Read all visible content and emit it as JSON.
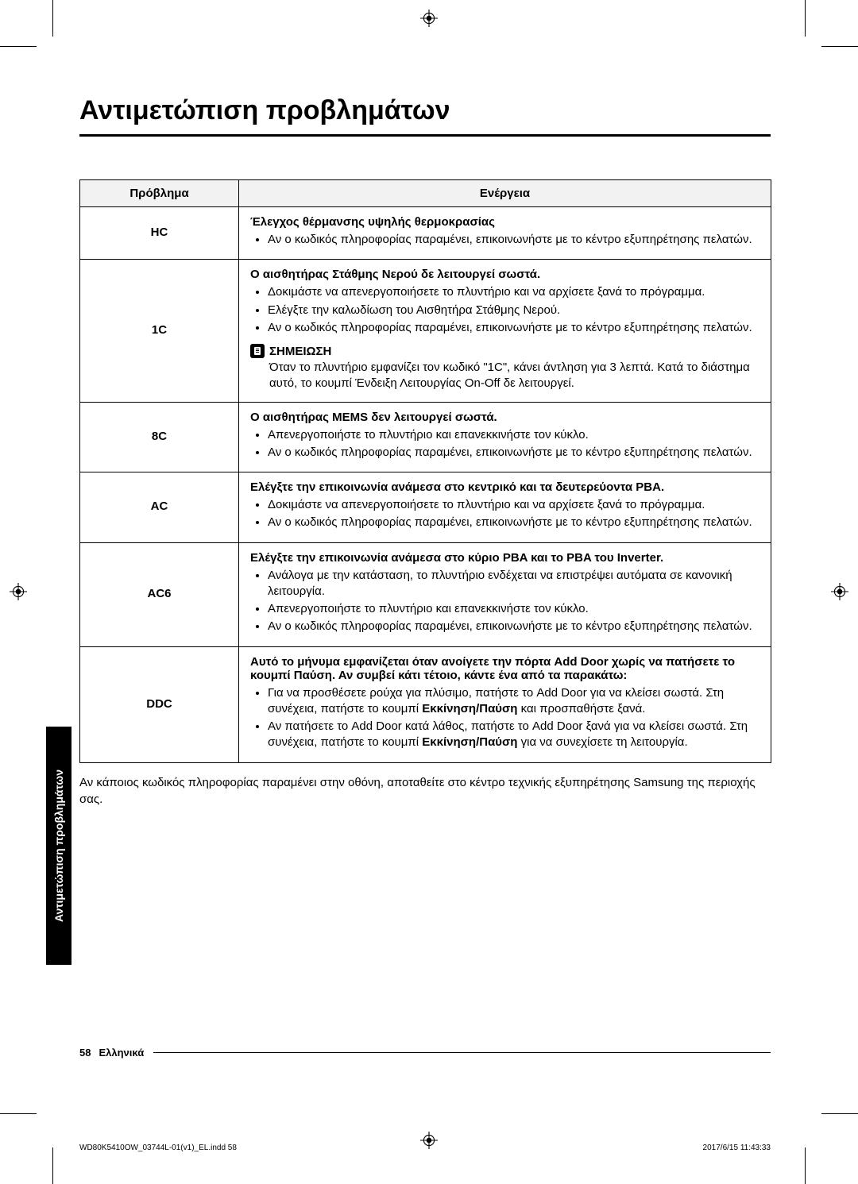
{
  "title": "Αντιμετώπιση προβλημάτων",
  "side_tab": "Αντιμετώπιση προβλημάτων",
  "table": {
    "headers": {
      "problem": "Πρόβλημα",
      "action": "Ενέργεια"
    },
    "rows": [
      {
        "code": "HC",
        "lead": "Έλεγχος θέρμανσης υψηλής θερμοκρασίας",
        "bullets": [
          "Αν ο κωδικός πληροφορίας παραμένει, επικοινωνήστε με το κέντρο εξυπηρέτησης πελατών."
        ]
      },
      {
        "code": "1C",
        "lead": "Ο αισθητήρας Στάθμης Νερού δε λειτουργεί σωστά.",
        "bullets": [
          "Δοκιμάστε να απενεργοποιήσετε το πλυντήριο και να αρχίσετε ξανά το πρόγραμμα.",
          "Ελέγξτε την καλωδίωση του Αισθητήρα Στάθμης Νερού.",
          "Αν ο κωδικός πληροφορίας παραμένει, επικοινωνήστε με το κέντρο εξυπηρέτησης πελατών."
        ],
        "note_label": "ΣΗΜΕΙΩΣΗ",
        "note_body": "Όταν το πλυντήριο εμφανίζει τον κωδικό \"1C\", κάνει άντληση για 3 λεπτά. Κατά το διάστημα αυτό, το κουμπί Ένδειξη Λειτουργίας On-Off δε λειτουργεί."
      },
      {
        "code": "8C",
        "lead": "Ο αισθητήρας MEMS δεν λειτουργεί σωστά.",
        "bullets": [
          "Απενεργοποιήστε το πλυντήριο και επανεκκινήστε τον κύκλο.",
          "Αν ο κωδικός πληροφορίας παραμένει, επικοινωνήστε με το κέντρο εξυπηρέτησης πελατών."
        ]
      },
      {
        "code": "AC",
        "lead": "Ελέγξτε την επικοινωνία ανάμεσα στο κεντρικό και τα δευτερεύοντα PBA.",
        "bullets": [
          "Δοκιμάστε να απενεργοποιήσετε το πλυντήριο και να αρχίσετε ξανά το πρόγραμμα.",
          "Αν ο κωδικός πληροφορίας παραμένει, επικοινωνήστε με το κέντρο εξυπηρέτησης πελατών."
        ]
      },
      {
        "code": "AC6",
        "lead": "Ελέγξτε την επικοινωνία ανάμεσα στο κύριο PBA και το PBA του Inverter.",
        "bullets": [
          "Ανάλογα με την κατάσταση, το πλυντήριο ενδέχεται να επιστρέψει αυτόματα σε κανονική λειτουργία.",
          "Απενεργοποιήστε το πλυντήριο και επανεκκινήστε τον κύκλο.",
          "Αν ο κωδικός πληροφορίας παραμένει, επικοινωνήστε με το κέντρο εξυπηρέτησης πελατών."
        ]
      },
      {
        "code": "DDC",
        "lead": "Αυτό το μήνυμα εμφανίζεται όταν ανοίγετε την πόρτα Add Door χωρίς να πατήσετε το κουμπί Παύση. Αν συμβεί κάτι τέτοιο, κάντε ένα από τα παρακάτω:",
        "bullets_html": [
          "Για να προσθέσετε ρούχα για πλύσιμο, πατήστε το Add Door για να κλείσει σωστά. Στη συνέχεια, πατήστε το κουμπί <b>Εκκίνηση/Παύση</b> και προσπαθήστε ξανά.",
          "Αν πατήσετε το Add Door κατά λάθος, πατήστε το Add Door ξανά για να κλείσει σωστά. Στη συνέχεια, πατήστε το κουμπί <b>Εκκίνηση/Παύση</b> για να συνεχίσετε τη λειτουργία."
        ]
      }
    ]
  },
  "after_note": "Αν κάποιος κωδικός πληροφορίας παραμένει στην οθόνη, αποταθείτε στο κέντρο τεχνικής εξυπηρέτησης Samsung της περιοχής σας.",
  "footer": {
    "page": "58",
    "lang": "Ελληνικά"
  },
  "print": {
    "left": "WD80K5410OW_03744L-01(v1)_EL.indd   58",
    "right": "2017/6/15   11:43:33"
  },
  "colors": {
    "header_bg": "#f2f2f2",
    "text": "#000000",
    "bg": "#ffffff"
  }
}
